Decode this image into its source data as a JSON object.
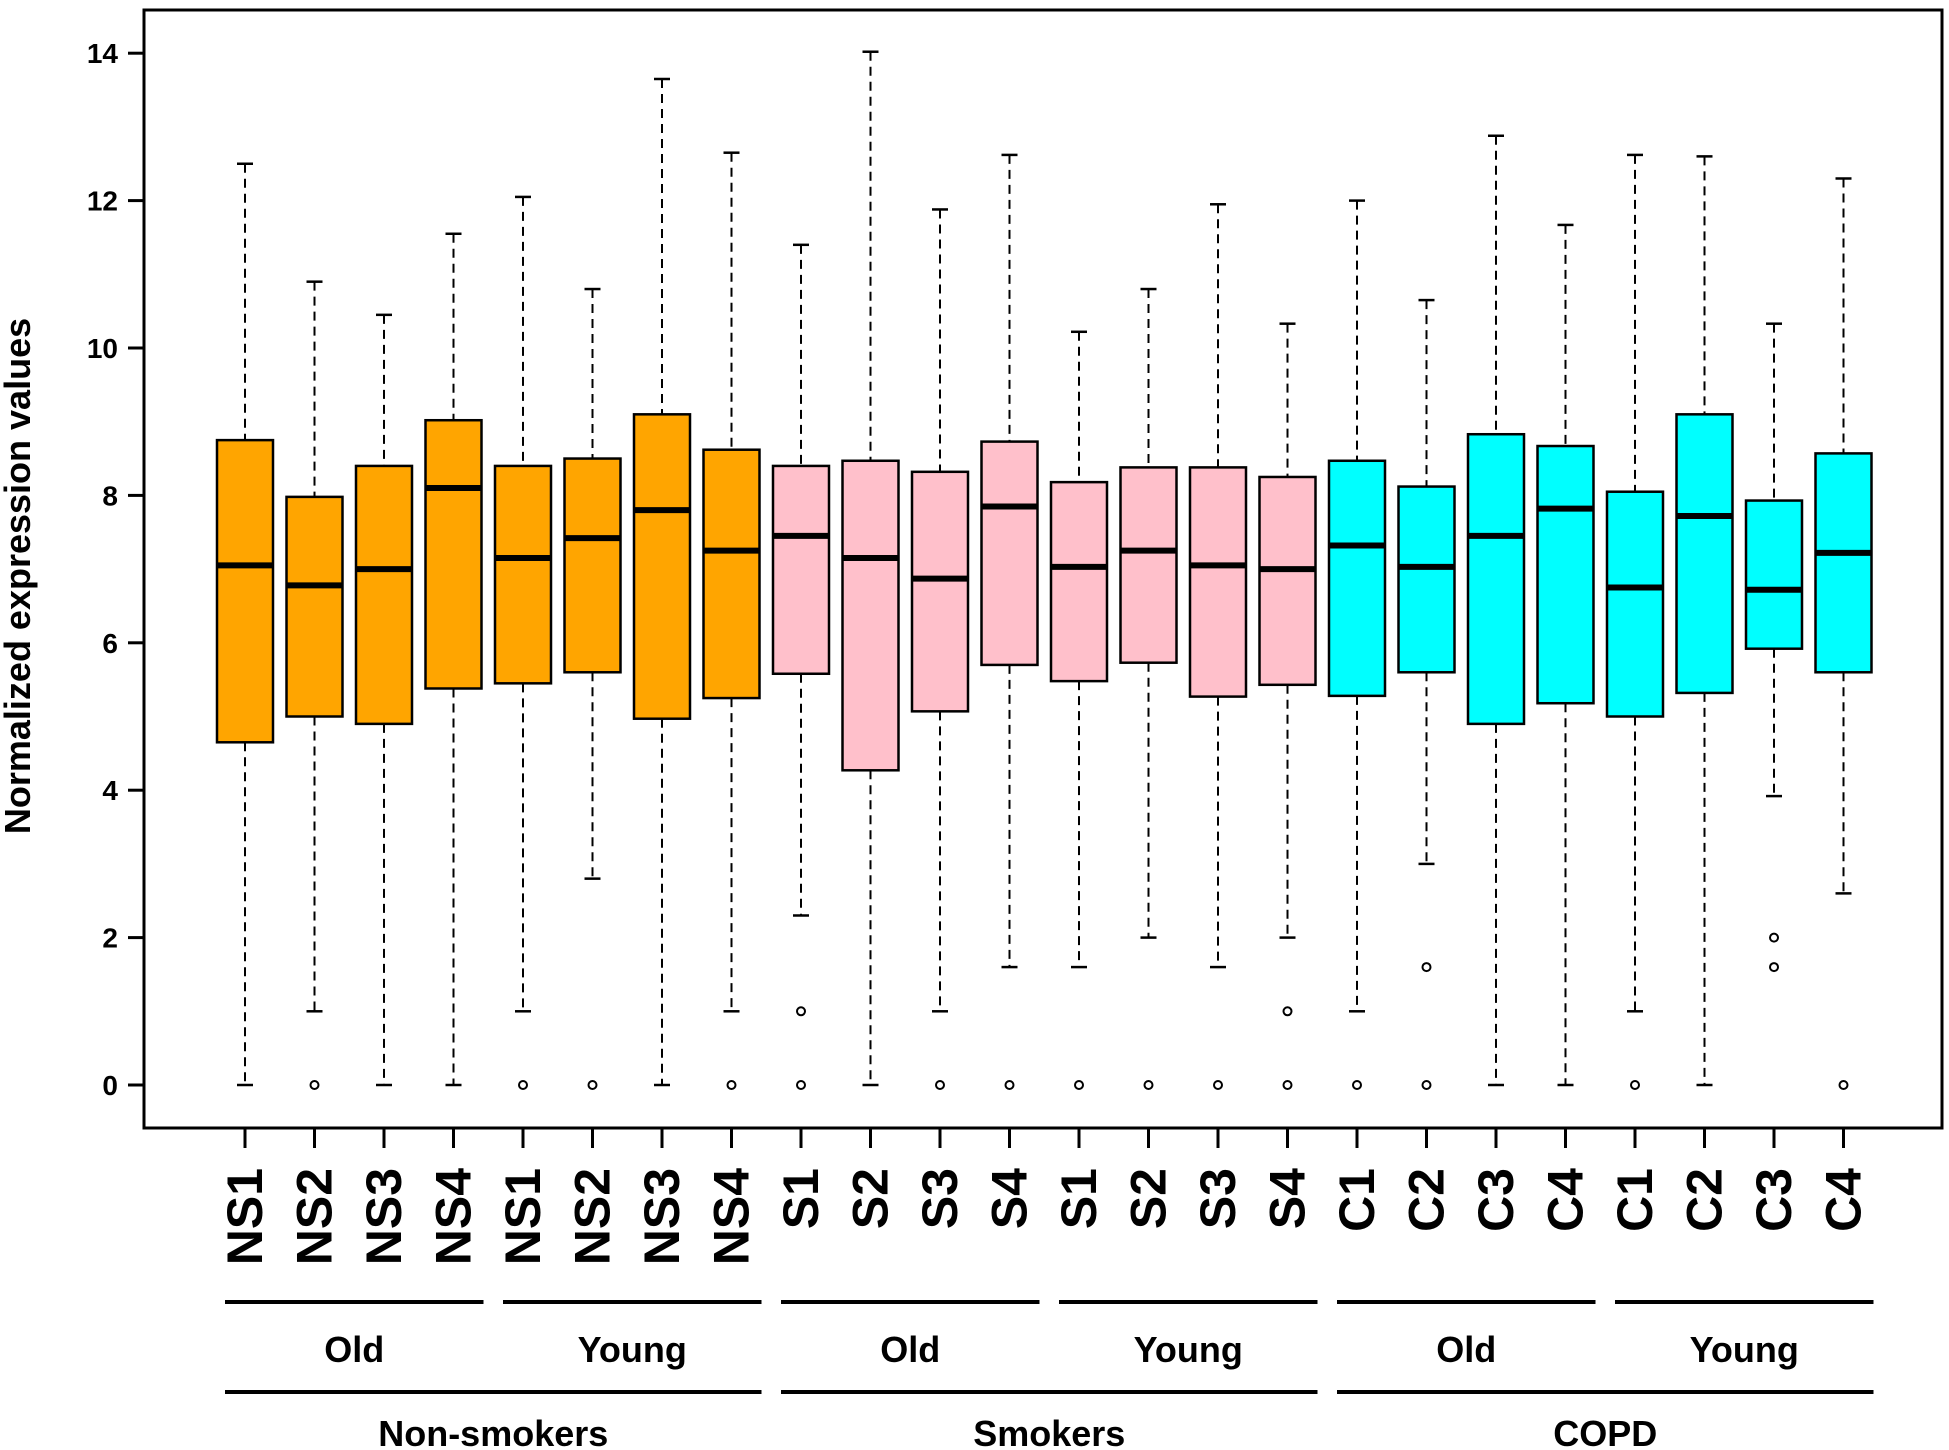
{
  "chart_data": {
    "type": "boxplot",
    "ylabel": "Normalized expression values",
    "ylim": [
      -0.6,
      14.6
    ],
    "yticks": [
      "0",
      "2",
      "4",
      "6",
      "8",
      "10",
      "12",
      "14"
    ],
    "grid": false,
    "colors": {
      "Non-smokers": "#FFA500",
      "Smokers": "#FFC0CB",
      "COPD": "#00FFFF"
    },
    "boxes": [
      {
        "label": "NS1",
        "group": "Non-smokers",
        "subgroup": "Old",
        "whisker_low": 0,
        "q1": 4.65,
        "median": 7.05,
        "q3": 8.75,
        "whisker_high": 12.5,
        "outliers": []
      },
      {
        "label": "NS2",
        "group": "Non-smokers",
        "subgroup": "Old",
        "whisker_low": 1,
        "q1": 5.0,
        "median": 6.78,
        "q3": 7.98,
        "whisker_high": 10.9,
        "outliers": [
          0
        ]
      },
      {
        "label": "NS3",
        "group": "Non-smokers",
        "subgroup": "Old",
        "whisker_low": 0,
        "q1": 4.9,
        "median": 7.0,
        "q3": 8.4,
        "whisker_high": 10.45,
        "outliers": []
      },
      {
        "label": "NS4",
        "group": "Non-smokers",
        "subgroup": "Old",
        "whisker_low": 0,
        "q1": 5.38,
        "median": 8.1,
        "q3": 9.02,
        "whisker_high": 11.55,
        "outliers": []
      },
      {
        "label": "NS1",
        "group": "Non-smokers",
        "subgroup": "Young",
        "whisker_low": 1,
        "q1": 5.45,
        "median": 7.15,
        "q3": 8.4,
        "whisker_high": 12.05,
        "outliers": [
          0
        ]
      },
      {
        "label": "NS2",
        "group": "Non-smokers",
        "subgroup": "Young",
        "whisker_low": 2.8,
        "q1": 5.6,
        "median": 7.42,
        "q3": 8.5,
        "whisker_high": 10.8,
        "outliers": [
          0
        ]
      },
      {
        "label": "NS3",
        "group": "Non-smokers",
        "subgroup": "Young",
        "whisker_low": 0,
        "q1": 4.97,
        "median": 7.8,
        "q3": 9.1,
        "whisker_high": 13.65,
        "outliers": []
      },
      {
        "label": "NS4",
        "group": "Non-smokers",
        "subgroup": "Young",
        "whisker_low": 1,
        "q1": 5.25,
        "median": 7.25,
        "q3": 8.62,
        "whisker_high": 12.65,
        "outliers": [
          0
        ]
      },
      {
        "label": "S1",
        "group": "Smokers",
        "subgroup": "Old",
        "whisker_low": 2.3,
        "q1": 5.58,
        "median": 7.45,
        "q3": 8.4,
        "whisker_high": 11.4,
        "outliers": [
          1,
          0
        ]
      },
      {
        "label": "S2",
        "group": "Smokers",
        "subgroup": "Old",
        "whisker_low": 0,
        "q1": 4.27,
        "median": 7.15,
        "q3": 8.47,
        "whisker_high": 14.02,
        "outliers": []
      },
      {
        "label": "S3",
        "group": "Smokers",
        "subgroup": "Old",
        "whisker_low": 1,
        "q1": 5.07,
        "median": 6.87,
        "q3": 8.32,
        "whisker_high": 11.88,
        "outliers": [
          0
        ]
      },
      {
        "label": "S4",
        "group": "Smokers",
        "subgroup": "Old",
        "whisker_low": 1.6,
        "q1": 5.7,
        "median": 7.85,
        "q3": 8.73,
        "whisker_high": 12.62,
        "outliers": [
          0
        ]
      },
      {
        "label": "S1",
        "group": "Smokers",
        "subgroup": "Young",
        "whisker_low": 1.6,
        "q1": 5.48,
        "median": 7.03,
        "q3": 8.18,
        "whisker_high": 10.22,
        "outliers": [
          0
        ]
      },
      {
        "label": "S2",
        "group": "Smokers",
        "subgroup": "Young",
        "whisker_low": 2,
        "q1": 5.73,
        "median": 7.25,
        "q3": 8.38,
        "whisker_high": 10.8,
        "outliers": [
          0
        ]
      },
      {
        "label": "S3",
        "group": "Smokers",
        "subgroup": "Young",
        "whisker_low": 1.6,
        "q1": 5.27,
        "median": 7.05,
        "q3": 8.38,
        "whisker_high": 11.95,
        "outliers": [
          0
        ]
      },
      {
        "label": "S4",
        "group": "Smokers",
        "subgroup": "Young",
        "whisker_low": 2,
        "q1": 5.43,
        "median": 7.0,
        "q3": 8.25,
        "whisker_high": 10.33,
        "outliers": [
          1,
          0
        ]
      },
      {
        "label": "C1",
        "group": "COPD",
        "subgroup": "Old",
        "whisker_low": 1,
        "q1": 5.28,
        "median": 7.32,
        "q3": 8.47,
        "whisker_high": 12.0,
        "outliers": [
          0
        ]
      },
      {
        "label": "C2",
        "group": "COPD",
        "subgroup": "Old",
        "whisker_low": 3.0,
        "q1": 5.6,
        "median": 7.03,
        "q3": 8.12,
        "whisker_high": 10.65,
        "outliers": [
          1.6,
          0
        ]
      },
      {
        "label": "C3",
        "group": "COPD",
        "subgroup": "Old",
        "whisker_low": 0,
        "q1": 4.9,
        "median": 7.45,
        "q3": 8.83,
        "whisker_high": 12.88,
        "outliers": []
      },
      {
        "label": "C4",
        "group": "COPD",
        "subgroup": "Old",
        "whisker_low": 0,
        "q1": 5.18,
        "median": 7.82,
        "q3": 8.67,
        "whisker_high": 11.67,
        "outliers": []
      },
      {
        "label": "C1",
        "group": "COPD",
        "subgroup": "Young",
        "whisker_low": 1,
        "q1": 5.0,
        "median": 6.75,
        "q3": 8.05,
        "whisker_high": 12.62,
        "outliers": [
          0
        ]
      },
      {
        "label": "C2",
        "group": "COPD",
        "subgroup": "Young",
        "whisker_low": 0,
        "q1": 5.32,
        "median": 7.72,
        "q3": 9.1,
        "whisker_high": 12.6,
        "outliers": []
      },
      {
        "label": "C3",
        "group": "COPD",
        "subgroup": "Young",
        "whisker_low": 3.92,
        "q1": 5.92,
        "median": 6.72,
        "q3": 7.93,
        "whisker_high": 10.33,
        "outliers": [
          2.0,
          1.6
        ]
      },
      {
        "label": "C4",
        "group": "COPD",
        "subgroup": "Young",
        "whisker_low": 2.6,
        "q1": 5.6,
        "median": 7.22,
        "q3": 8.57,
        "whisker_high": 12.3,
        "outliers": [
          0
        ]
      }
    ],
    "subgroups": [
      {
        "name": "Old",
        "group": "Non-smokers"
      },
      {
        "name": "Young",
        "group": "Non-smokers"
      },
      {
        "name": "Old",
        "group": "Smokers"
      },
      {
        "name": "Young",
        "group": "Smokers"
      },
      {
        "name": "Old",
        "group": "COPD"
      },
      {
        "name": "Young",
        "group": "COPD"
      }
    ],
    "groups": [
      "Non-smokers",
      "Smokers",
      "COPD"
    ]
  }
}
